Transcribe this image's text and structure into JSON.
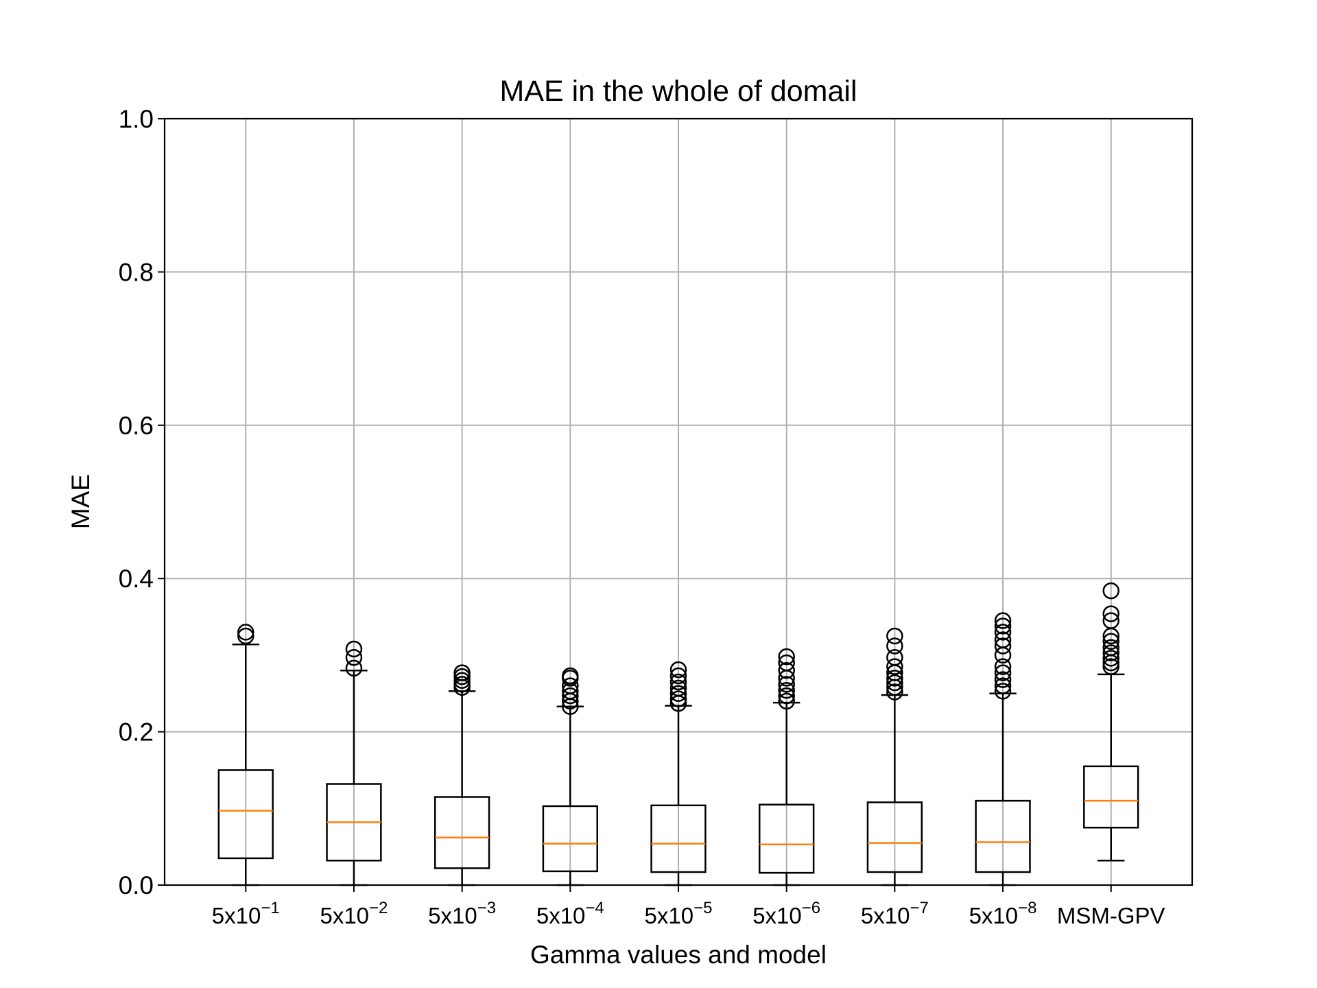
{
  "chart_data": {
    "type": "box",
    "title": "MAE in the whole of domail",
    "xlabel": "Gamma values and model",
    "ylabel": "MAE",
    "ylim": [
      0.0,
      1.0
    ],
    "yticks": [
      "0.0",
      "0.2",
      "0.4",
      "0.6",
      "0.8",
      "1.0"
    ],
    "ytick_values": [
      0.0,
      0.2,
      0.4,
      0.6,
      0.8,
      1.0
    ],
    "grid": true,
    "categories": [
      {
        "base": "5x10",
        "exp": "−1"
      },
      {
        "base": "5x10",
        "exp": "−2"
      },
      {
        "base": "5x10",
        "exp": "−3"
      },
      {
        "base": "5x10",
        "exp": "−4"
      },
      {
        "base": "5x10",
        "exp": "−5"
      },
      {
        "base": "5x10",
        "exp": "−6"
      },
      {
        "base": "5x10",
        "exp": "−7"
      },
      {
        "base": "5x10",
        "exp": "−8"
      },
      {
        "base": "MSM-GPV",
        "exp": ""
      }
    ],
    "boxes": [
      {
        "whisker_low": 0.0,
        "q1": 0.035,
        "median": 0.097,
        "q3": 0.15,
        "whisker_high": 0.314,
        "outliers": [
          0.325,
          0.33
        ]
      },
      {
        "whisker_low": 0.0,
        "q1": 0.032,
        "median": 0.082,
        "q3": 0.132,
        "whisker_high": 0.28,
        "outliers": [
          0.283,
          0.297,
          0.308
        ]
      },
      {
        "whisker_low": 0.0,
        "q1": 0.022,
        "median": 0.062,
        "q3": 0.115,
        "whisker_high": 0.253,
        "outliers": [
          0.258,
          0.262,
          0.267,
          0.272,
          0.277
        ]
      },
      {
        "whisker_low": 0.0,
        "q1": 0.018,
        "median": 0.054,
        "q3": 0.103,
        "whisker_high": 0.233,
        "outliers": [
          0.233,
          0.24,
          0.247,
          0.253,
          0.26,
          0.27,
          0.273
        ]
      },
      {
        "whisker_low": 0.0,
        "q1": 0.017,
        "median": 0.054,
        "q3": 0.104,
        "whisker_high": 0.234,
        "outliers": [
          0.237,
          0.243,
          0.25,
          0.257,
          0.265,
          0.273,
          0.281
        ]
      },
      {
        "whisker_low": 0.0,
        "q1": 0.016,
        "median": 0.053,
        "q3": 0.105,
        "whisker_high": 0.238,
        "outliers": [
          0.24,
          0.247,
          0.254,
          0.262,
          0.27,
          0.28,
          0.29,
          0.298
        ]
      },
      {
        "whisker_low": 0.0,
        "q1": 0.017,
        "median": 0.055,
        "q3": 0.108,
        "whisker_high": 0.248,
        "outliers": [
          0.252,
          0.258,
          0.264,
          0.27,
          0.277,
          0.285,
          0.297,
          0.312,
          0.325
        ]
      },
      {
        "whisker_low": 0.0,
        "q1": 0.017,
        "median": 0.056,
        "q3": 0.11,
        "whisker_high": 0.25,
        "outliers": [
          0.253,
          0.26,
          0.268,
          0.277,
          0.285,
          0.3,
          0.312,
          0.32,
          0.33,
          0.338,
          0.345
        ]
      },
      {
        "whisker_low": 0.032,
        "q1": 0.075,
        "median": 0.11,
        "q3": 0.155,
        "whisker_high": 0.275,
        "outliers": [
          0.285,
          0.29,
          0.296,
          0.303,
          0.31,
          0.318,
          0.325,
          0.345,
          0.354,
          0.384
        ]
      }
    ],
    "colors": {
      "box": "#000000",
      "median": "#ff7f0e",
      "grid": "#b0b0b0",
      "outlier": "#000000"
    }
  }
}
